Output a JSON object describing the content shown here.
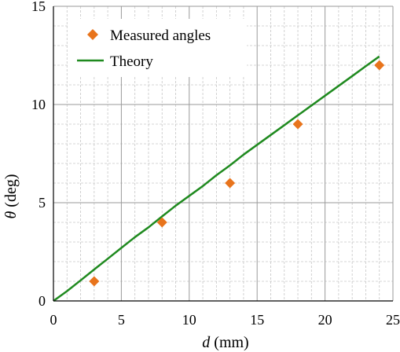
{
  "chart_data": {
    "type": "scatter",
    "xlim": [
      0,
      25
    ],
    "ylim": [
      0,
      15
    ],
    "x_ticks": [
      "0",
      "5",
      "10",
      "15",
      "20",
      "25"
    ],
    "y_ticks": [
      "0",
      "5",
      "10",
      "15"
    ],
    "xlabel": {
      "symbol": "d",
      "unit": "(mm)"
    },
    "ylabel": {
      "symbol": "θ",
      "unit": "(deg)"
    },
    "grid": true,
    "legend_position": "top-left",
    "series": [
      {
        "name": "Measured angles",
        "kind": "markers",
        "marker": "diamond",
        "color": "#e8741c",
        "x": [
          3,
          8,
          13,
          18,
          24
        ],
        "y": [
          1.0,
          4.0,
          6.0,
          9.0,
          12.0
        ]
      },
      {
        "name": "Theory",
        "kind": "line",
        "color": "#1f8a1f",
        "x": [
          0,
          1,
          2,
          3,
          4,
          5,
          6,
          7,
          8,
          9,
          10,
          11,
          12,
          13,
          14,
          15,
          16,
          17,
          18,
          19,
          20,
          21,
          22,
          23,
          24
        ],
        "y": [
          0,
          0.5,
          1.05,
          1.6,
          2.15,
          2.7,
          3.25,
          3.75,
          4.3,
          4.85,
          5.35,
          5.85,
          6.4,
          6.9,
          7.45,
          7.95,
          8.45,
          8.95,
          9.45,
          9.95,
          10.45,
          10.95,
          11.45,
          11.95,
          12.45
        ]
      }
    ]
  }
}
